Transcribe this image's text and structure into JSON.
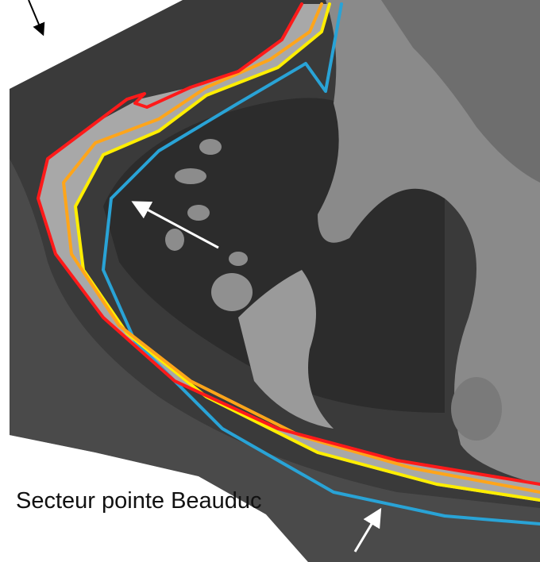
{
  "label": "Secteur pointe Beauduc"
}
